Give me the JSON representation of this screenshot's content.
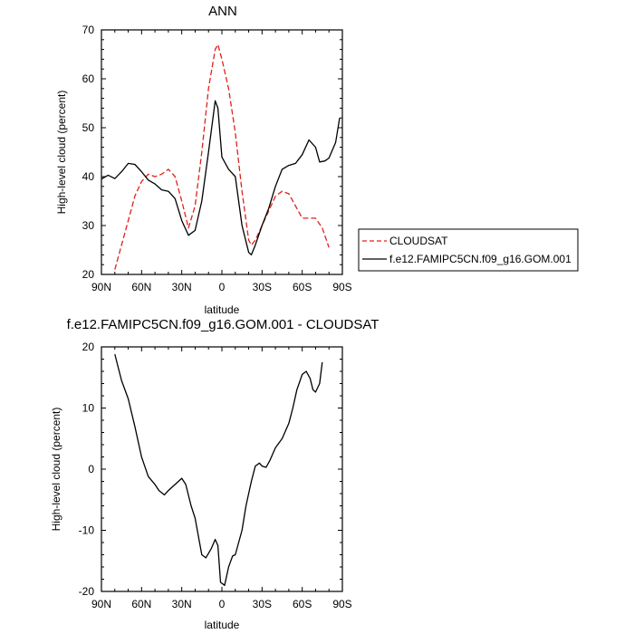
{
  "chart_data": [
    {
      "type": "line",
      "title": "ANN",
      "xlabel": "latitude",
      "ylabel": "High-level cloud (percent)",
      "xlim": [
        90,
        -90
      ],
      "ylim": [
        20,
        70
      ],
      "x_ticks": [
        {
          "value": 90,
          "label": "90N"
        },
        {
          "value": 60,
          "label": "60N"
        },
        {
          "value": 30,
          "label": "30N"
        },
        {
          "value": 0,
          "label": "0"
        },
        {
          "value": -30,
          "label": "30S"
        },
        {
          "value": -60,
          "label": "60S"
        },
        {
          "value": -90,
          "label": "90S"
        }
      ],
      "y_ticks": [
        20,
        30,
        40,
        50,
        60,
        70
      ],
      "legend_position": "right",
      "series": [
        {
          "name": "CLOUDSAT",
          "color": "#e0201b",
          "dash": true,
          "points": [
            [
              80,
              21
            ],
            [
              75,
              26
            ],
            [
              70,
              31
            ],
            [
              65,
              36
            ],
            [
              60,
              39
            ],
            [
              55,
              40.5
            ],
            [
              50,
              40
            ],
            [
              45,
              40.5
            ],
            [
              40,
              41.5
            ],
            [
              35,
              40
            ],
            [
              30,
              35
            ],
            [
              25,
              29.5
            ],
            [
              20,
              34
            ],
            [
              15,
              45
            ],
            [
              10,
              58
            ],
            [
              5,
              66
            ],
            [
              3,
              67
            ],
            [
              0,
              64
            ],
            [
              -5,
              58
            ],
            [
              -10,
              49
            ],
            [
              -15,
              37
            ],
            [
              -20,
              27
            ],
            [
              -22,
              26
            ],
            [
              -25,
              27
            ],
            [
              -30,
              30
            ],
            [
              -35,
              33
            ],
            [
              -40,
              36
            ],
            [
              -45,
              37
            ],
            [
              -50,
              36.5
            ],
            [
              -55,
              34
            ],
            [
              -60,
              31.5
            ],
            [
              -65,
              31.5
            ],
            [
              -70,
              31.5
            ],
            [
              -75,
              29.5
            ],
            [
              -80,
              25.5
            ]
          ]
        },
        {
          "name": "f.e12.FAMIPC5CN.f09_g16.GOM.001",
          "color": "#000000",
          "dash": false,
          "points": [
            [
              90,
              39.5
            ],
            [
              85,
              40.3
            ],
            [
              80,
              39.6
            ],
            [
              75,
              41
            ],
            [
              70,
              42.7
            ],
            [
              65,
              42.5
            ],
            [
              60,
              41
            ],
            [
              55,
              39.3
            ],
            [
              50,
              38.5
            ],
            [
              45,
              37.3
            ],
            [
              40,
              37
            ],
            [
              35,
              35.5
            ],
            [
              30,
              31
            ],
            [
              25,
              28
            ],
            [
              20,
              29
            ],
            [
              15,
              35
            ],
            [
              10,
              45
            ],
            [
              5,
              55.5
            ],
            [
              3,
              54
            ],
            [
              0,
              44
            ],
            [
              -5,
              41.5
            ],
            [
              -10,
              40
            ],
            [
              -15,
              30
            ],
            [
              -20,
              24.5
            ],
            [
              -22,
              24
            ],
            [
              -25,
              26
            ],
            [
              -30,
              30
            ],
            [
              -35,
              33.5
            ],
            [
              -40,
              38
            ],
            [
              -45,
              41.5
            ],
            [
              -50,
              42.3
            ],
            [
              -55,
              42.7
            ],
            [
              -60,
              44.5
            ],
            [
              -65,
              47.5
            ],
            [
              -70,
              46
            ],
            [
              -73,
              43
            ],
            [
              -77,
              43.2
            ],
            [
              -80,
              43.8
            ],
            [
              -85,
              47
            ],
            [
              -88,
              52
            ]
          ]
        }
      ]
    },
    {
      "type": "line",
      "title": "f.e12.FAMIPC5CN.f09_g16.GOM.001 - CLOUDSAT",
      "xlabel": "latitude",
      "ylabel": "High-level cloud (percent)",
      "xlim": [
        90,
        -90
      ],
      "ylim": [
        -20,
        20
      ],
      "x_ticks": [
        {
          "value": 90,
          "label": "90N"
        },
        {
          "value": 60,
          "label": "60N"
        },
        {
          "value": 30,
          "label": "30N"
        },
        {
          "value": 0,
          "label": "0"
        },
        {
          "value": -30,
          "label": "30S"
        },
        {
          "value": -60,
          "label": "60S"
        },
        {
          "value": -90,
          "label": "90S"
        }
      ],
      "y_ticks": [
        -20,
        -10,
        0,
        10,
        20
      ],
      "series": [
        {
          "color": "#000000",
          "dash": false,
          "points": [
            [
              80,
              18.8
            ],
            [
              75,
              14.5
            ],
            [
              70,
              11.5
            ],
            [
              65,
              7
            ],
            [
              60,
              2
            ],
            [
              55,
              -1.2
            ],
            [
              50,
              -2.5
            ],
            [
              47,
              -3.5
            ],
            [
              43,
              -4.2
            ],
            [
              40,
              -3.5
            ],
            [
              35,
              -2.5
            ],
            [
              30,
              -1.5
            ],
            [
              27,
              -2.5
            ],
            [
              23,
              -6
            ],
            [
              20,
              -8
            ],
            [
              15,
              -14
            ],
            [
              12,
              -14.5
            ],
            [
              8,
              -13
            ],
            [
              5,
              -11.5
            ],
            [
              3,
              -12.5
            ],
            [
              1,
              -18.5
            ],
            [
              -2,
              -19
            ],
            [
              -5,
              -16
            ],
            [
              -8,
              -14.2
            ],
            [
              -10,
              -14
            ],
            [
              -15,
              -10
            ],
            [
              -18,
              -6
            ],
            [
              -22,
              -2
            ],
            [
              -25,
              0.5
            ],
            [
              -28,
              1
            ],
            [
              -30,
              0.5
            ],
            [
              -33,
              0.3
            ],
            [
              -36,
              1.5
            ],
            [
              -40,
              3.5
            ],
            [
              -45,
              5
            ],
            [
              -50,
              7.5
            ],
            [
              -53,
              10
            ],
            [
              -56,
              13
            ],
            [
              -60,
              15.5
            ],
            [
              -63,
              16
            ],
            [
              -66,
              14.8
            ],
            [
              -68,
              13
            ],
            [
              -70,
              12.6
            ],
            [
              -73,
              14
            ],
            [
              -75,
              17.5
            ]
          ]
        }
      ]
    }
  ]
}
